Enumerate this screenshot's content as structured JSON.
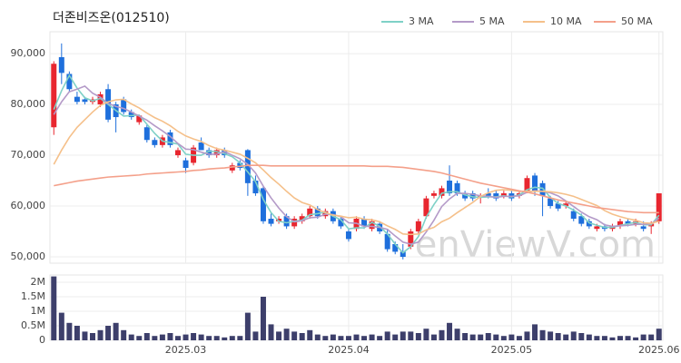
{
  "chart_data": [
    {
      "type": "candlestick",
      "title": "더존비즈온(012510)",
      "watermark": "enViewV.com",
      "up_color": "#e8262f",
      "down_color": "#1e6fdc",
      "open": [
        75500,
        89300,
        86000,
        81500,
        81000,
        80500,
        80000,
        83000,
        80000,
        81000,
        78500,
        76500,
        75500,
        73000,
        72000,
        74500,
        70000,
        69000,
        68500,
        72500,
        71000,
        70000,
        71000,
        67000,
        68500,
        71000,
        65000,
        63500,
        57500,
        57000,
        58000,
        56000,
        57000,
        58000,
        59500,
        58000,
        59000,
        57500,
        55000,
        55500,
        57500,
        55500,
        56500,
        54500,
        52500,
        51000,
        52000,
        55000,
        58000,
        62000,
        62000,
        65000,
        64500,
        62500,
        62500,
        62000,
        62500,
        62500,
        62000,
        62500,
        62000,
        63000,
        66000,
        64500,
        61500,
        60500,
        60000,
        59000,
        58000,
        57000,
        55500,
        56000,
        55500,
        56000,
        57000,
        56500,
        56000,
        56000,
        57000
      ],
      "high": [
        88500,
        92000,
        86500,
        82500,
        81500,
        81500,
        82500,
        84000,
        80500,
        81500,
        79000,
        78000,
        76000,
        73500,
        74000,
        75000,
        71500,
        69500,
        72000,
        73500,
        71500,
        71500,
        71500,
        68500,
        69000,
        71200,
        66000,
        64000,
        58500,
        58000,
        58500,
        58000,
        58500,
        60000,
        60000,
        59500,
        59500,
        58000,
        55500,
        58000,
        58000,
        57500,
        57000,
        55500,
        53000,
        52500,
        55500,
        57500,
        62000,
        63000,
        64000,
        68000,
        65000,
        63000,
        63000,
        62500,
        63500,
        63000,
        63000,
        63000,
        63000,
        66000,
        66500,
        65000,
        62000,
        61000,
        61000,
        59500,
        58500,
        57500,
        56500,
        56500,
        56500,
        57500,
        57500,
        57500,
        57000,
        57000,
        62500
      ],
      "low": [
        74000,
        84000,
        82500,
        80000,
        80000,
        80000,
        79500,
        76500,
        74500,
        78000,
        77000,
        76000,
        72500,
        71500,
        71500,
        71500,
        69500,
        66500,
        68000,
        71000,
        69500,
        69500,
        69500,
        66500,
        67000,
        62000,
        62000,
        56500,
        56000,
        56500,
        55500,
        55500,
        56500,
        57500,
        57500,
        57500,
        56500,
        55500,
        53000,
        55000,
        55500,
        55000,
        54500,
        51000,
        50500,
        49500,
        51500,
        54500,
        57500,
        61500,
        61500,
        62000,
        62000,
        61000,
        61000,
        60500,
        61500,
        61000,
        61500,
        61000,
        61500,
        62500,
        62000,
        58000,
        59500,
        59000,
        59500,
        57000,
        56000,
        55500,
        55000,
        55000,
        55000,
        55500,
        56000,
        56000,
        55000,
        54500,
        56500
      ],
      "close": [
        88000,
        86200,
        83000,
        80500,
        80500,
        81000,
        82000,
        77000,
        77500,
        78500,
        77500,
        77800,
        73000,
        72000,
        73500,
        72000,
        71000,
        67500,
        71500,
        71000,
        70000,
        71000,
        70000,
        68000,
        67500,
        64500,
        62500,
        57000,
        56500,
        57500,
        56000,
        57500,
        58000,
        59500,
        58000,
        59000,
        57000,
        56000,
        53500,
        57500,
        56000,
        57000,
        55000,
        51500,
        51000,
        50000,
        55000,
        57000,
        61500,
        62500,
        63500,
        62500,
        62500,
        61500,
        61500,
        62000,
        62000,
        61500,
        62500,
        61500,
        62500,
        65500,
        63000,
        62000,
        60000,
        59500,
        60500,
        57500,
        56500,
        56000,
        56000,
        55500,
        56000,
        57000,
        56500,
        57000,
        55500,
        56500,
        62500
      ],
      "series": [
        {
          "name": "3 MA",
          "color": "#7fd1c7",
          "values": [
            79000,
            82700,
            85700,
            83200,
            81300,
            80700,
            81200,
            80000,
            78800,
            77700,
            77800,
            77900,
            76100,
            74300,
            72800,
            72500,
            72200,
            70200,
            70000,
            70000,
            70800,
            70700,
            70300,
            69700,
            68500,
            66700,
            64800,
            61300,
            58700,
            57000,
            56700,
            57000,
            57200,
            58300,
            58500,
            58800,
            58000,
            57300,
            55500,
            55700,
            55700,
            56800,
            56000,
            54500,
            52500,
            50800,
            52000,
            54000,
            57800,
            60300,
            62500,
            62800,
            62800,
            62200,
            61800,
            61700,
            61800,
            61800,
            62000,
            61800,
            62200,
            63200,
            63700,
            63500,
            61700,
            60500,
            60000,
            59200,
            58200,
            56700,
            56200,
            55800,
            55800,
            56200,
            56500,
            56800,
            56300,
            56300,
            58200
          ]
        },
        {
          "name": "5 MA",
          "color": "#b49ac8",
          "values": [
            78000,
            80500,
            82500,
            83000,
            83600,
            82200,
            81400,
            80200,
            79600,
            79200,
            78500,
            77700,
            76900,
            75800,
            74800,
            73700,
            72300,
            71200,
            71100,
            70600,
            70200,
            70200,
            70700,
            70000,
            69300,
            68200,
            66500,
            63900,
            61600,
            59600,
            57900,
            56900,
            57100,
            57700,
            57800,
            58400,
            58300,
            57900,
            56700,
            56600,
            56000,
            56000,
            55800,
            55400,
            54100,
            52900,
            52500,
            52900,
            54900,
            57200,
            59900,
            61400,
            62500,
            62500,
            62300,
            62000,
            61900,
            61700,
            61900,
            61900,
            62000,
            62700,
            63000,
            62900,
            62600,
            62000,
            61000,
            59900,
            58800,
            57900,
            57300,
            56300,
            56000,
            56100,
            56200,
            56400,
            56400,
            56500,
            57600
          ]
        },
        {
          "name": "10 MA",
          "color": "#f5c08a",
          "values": [
            68200,
            71000,
            73500,
            75500,
            77000,
            78500,
            79800,
            80500,
            80900,
            81000,
            80100,
            79300,
            78300,
            77400,
            76700,
            75800,
            74700,
            73800,
            73200,
            72700,
            71900,
            71300,
            71000,
            70600,
            70200,
            69400,
            68500,
            67100,
            65600,
            64300,
            62900,
            61600,
            60700,
            60200,
            59300,
            58700,
            58200,
            58000,
            57700,
            57800,
            57400,
            57300,
            56900,
            56100,
            55400,
            54500,
            54400,
            54500,
            55300,
            55800,
            56900,
            57600,
            58700,
            59700,
            60700,
            61900,
            62600,
            63100,
            63200,
            63100,
            62900,
            62900,
            62900,
            62900,
            62800,
            62600,
            62300,
            61900,
            61300,
            60700,
            60100,
            59100,
            58400,
            57900,
            57500,
            57200,
            56700,
            56600,
            57000
          ]
        },
        {
          "name": "50 MA",
          "color": "#f4a08a",
          "values": [
            64000,
            64300,
            64600,
            64900,
            65100,
            65300,
            65500,
            65700,
            65800,
            65900,
            66000,
            66100,
            66300,
            66400,
            66500,
            66600,
            66700,
            66800,
            67000,
            67100,
            67300,
            67400,
            67500,
            67700,
            67800,
            68000,
            68000,
            68000,
            67900,
            67900,
            67900,
            67900,
            67900,
            67900,
            67900,
            67900,
            67900,
            67900,
            67900,
            67900,
            67900,
            67800,
            67800,
            67800,
            67700,
            67600,
            67400,
            67200,
            67000,
            66800,
            66500,
            66100,
            65700,
            65300,
            64900,
            64500,
            64200,
            63900,
            63600,
            63300,
            63000,
            62700,
            62400,
            62000,
            61600,
            61200,
            60900,
            60600,
            60300,
            60000,
            59700,
            59500,
            59300,
            59100,
            58900,
            58800,
            58700,
            58700,
            58700
          ]
        }
      ],
      "ylim": [
        48750,
        94300
      ],
      "yticks": [
        {
          "value": 50000,
          "label": "50,000"
        },
        {
          "value": 60000,
          "label": "60,000"
        },
        {
          "value": 70000,
          "label": "70,000"
        },
        {
          "value": 80000,
          "label": "80,000"
        },
        {
          "value": 90000,
          "label": "90,000"
        }
      ],
      "grid": true
    },
    {
      "type": "bar",
      "color": "#3d3f6b",
      "categories": [
        null,
        null,
        null,
        null,
        null,
        null,
        null,
        null,
        null,
        null,
        null,
        null,
        null,
        null,
        null,
        null,
        null,
        "2025.03",
        null,
        null,
        null,
        null,
        null,
        null,
        null,
        null,
        null,
        null,
        null,
        null,
        null,
        null,
        null,
        null,
        null,
        null,
        null,
        null,
        "2025.04",
        null,
        null,
        null,
        null,
        null,
        null,
        null,
        null,
        null,
        null,
        null,
        null,
        null,
        null,
        null,
        null,
        null,
        null,
        null,
        null,
        "2025.05",
        null,
        null,
        null,
        null,
        null,
        null,
        null,
        null,
        null,
        null,
        null,
        null,
        null,
        null,
        null,
        null,
        null,
        null,
        "2025.06"
      ],
      "values": [
        2200000,
        950000,
        600000,
        500000,
        300000,
        250000,
        350000,
        500000,
        600000,
        350000,
        200000,
        150000,
        250000,
        150000,
        200000,
        250000,
        150000,
        200000,
        250000,
        200000,
        150000,
        150000,
        100000,
        150000,
        150000,
        950000,
        300000,
        1500000,
        550000,
        300000,
        400000,
        300000,
        250000,
        350000,
        200000,
        150000,
        200000,
        150000,
        150000,
        200000,
        150000,
        200000,
        150000,
        300000,
        200000,
        300000,
        300000,
        250000,
        400000,
        200000,
        350000,
        600000,
        400000,
        250000,
        200000,
        200000,
        250000,
        200000,
        150000,
        200000,
        150000,
        300000,
        550000,
        350000,
        300000,
        250000,
        200000,
        300000,
        250000,
        200000,
        150000,
        150000,
        100000,
        150000,
        150000,
        100000,
        200000,
        200000,
        400000
      ],
      "ylim": [
        0,
        2250000
      ],
      "yticks": [
        {
          "value": 0,
          "label": "0"
        },
        {
          "value": 500000,
          "label": "0.5M"
        },
        {
          "value": 1000000,
          "label": "1M"
        },
        {
          "value": 1500000,
          "label": "1.5M"
        },
        {
          "value": 2000000,
          "label": "2M"
        }
      ],
      "grid": true
    }
  ]
}
